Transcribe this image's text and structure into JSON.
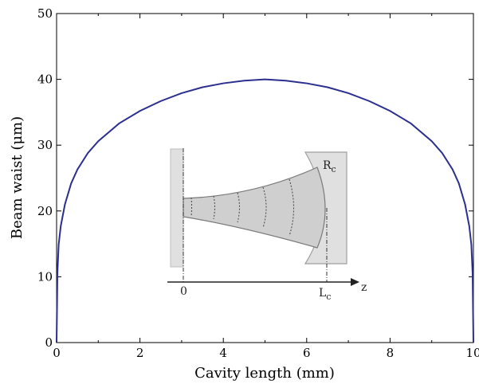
{
  "chart_data": {
    "type": "line",
    "title": "",
    "xlabel": "Cavity length (mm)",
    "ylabel": "Beam waist (μm)",
    "xlim": [
      0,
      10
    ],
    "ylim": [
      0,
      50
    ],
    "xticks": [
      0,
      2,
      4,
      6,
      8,
      10
    ],
    "yticks": [
      0,
      10,
      20,
      30,
      40,
      50
    ],
    "xtick_labels": [
      "0",
      "2",
      "4",
      "6",
      "8",
      "10"
    ],
    "ytick_labels": [
      "0",
      "10",
      "20",
      "30",
      "40",
      "50"
    ],
    "grid": false,
    "legend": "none",
    "series": [
      {
        "color": "#2b2f8f",
        "x": [
          0,
          0.02,
          0.05,
          0.1,
          0.2,
          0.35,
          0.5,
          0.75,
          1,
          1.5,
          2,
          2.5,
          3,
          3.5,
          4,
          4.5,
          5,
          5.5,
          6,
          6.5,
          7,
          7.5,
          8,
          8.5,
          9,
          9.25,
          9.5,
          9.65,
          9.8,
          9.9,
          9.95,
          9.98,
          10
        ],
        "y": [
          0,
          10.6,
          14.9,
          17.7,
          21.0,
          24.2,
          26.3,
          28.8,
          30.6,
          33.3,
          35.2,
          36.7,
          37.9,
          38.8,
          39.4,
          39.8,
          40.0,
          39.8,
          39.4,
          38.8,
          37.9,
          36.7,
          35.2,
          33.3,
          30.6,
          28.8,
          26.3,
          24.2,
          21.0,
          17.7,
          14.9,
          10.6,
          0
        ]
      }
    ],
    "inset": {
      "description_labels": {
        "origin": "0",
        "cavity_end": "L",
        "cavity_end_sub": "c",
        "mirror_radius": "R",
        "mirror_radius_sub": "c",
        "axis": "z"
      }
    }
  }
}
